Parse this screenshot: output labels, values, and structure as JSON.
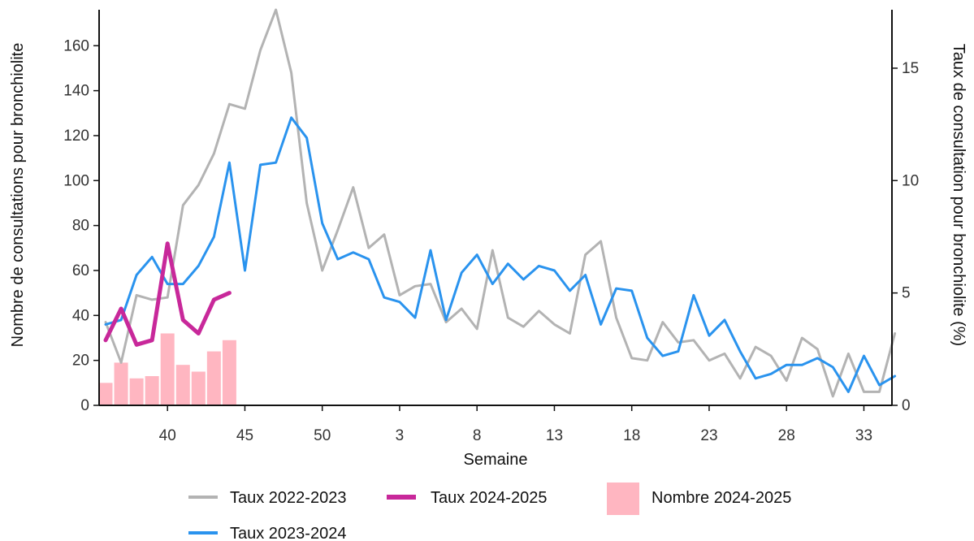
{
  "chart_data": {
    "type": "line",
    "xlabel": "Semaine",
    "ylabel_left": "Nombre de consultations pour bronchiolite",
    "ylabel_right": "Taux de consultation pour bronchiolite (%)",
    "weeks": [
      36,
      37,
      38,
      39,
      40,
      41,
      42,
      43,
      44,
      45,
      46,
      47,
      48,
      49,
      50,
      51,
      52,
      1,
      2,
      3,
      4,
      5,
      6,
      7,
      8,
      9,
      10,
      11,
      12,
      13,
      14,
      15,
      16,
      17,
      18,
      19,
      20,
      21,
      22,
      23,
      24,
      25,
      26,
      27,
      28,
      29,
      30,
      31,
      32,
      33,
      34,
      35
    ],
    "x_ticks": [
      "40",
      "45",
      "50",
      "3",
      "8",
      "13",
      "18",
      "23",
      "28",
      "33"
    ],
    "ylim_left": [
      0,
      176
    ],
    "yticks_left": [
      "0",
      "20",
      "40",
      "60",
      "80",
      "100",
      "120",
      "140",
      "160"
    ],
    "ylim_right": [
      0,
      17.6
    ],
    "yticks_right": [
      "0",
      "5",
      "10",
      "15"
    ],
    "series": [
      {
        "name": "Taux 2022-2023",
        "type": "line",
        "axis": "right",
        "color": "#b3b3b3",
        "values": [
          3.7,
          1.9,
          4.9,
          4.7,
          4.8,
          8.9,
          9.8,
          11.2,
          13.4,
          13.2,
          15.8,
          17.6,
          14.8,
          9.0,
          6.0,
          7.8,
          9.7,
          7.0,
          7.6,
          4.9,
          5.3,
          5.4,
          3.7,
          4.3,
          3.4,
          6.9,
          3.9,
          3.5,
          4.2,
          3.6,
          3.2,
          6.7,
          7.3,
          3.9,
          2.1,
          2.0,
          3.7,
          2.8,
          2.9,
          2.0,
          2.3,
          1.2,
          2.6,
          2.2,
          1.1,
          3.0,
          2.5,
          0.4,
          2.3,
          0.6,
          0.6,
          3.2
        ]
      },
      {
        "name": "Taux 2023-2024",
        "type": "line",
        "axis": "right",
        "color": "#2a93ee",
        "values": [
          3.6,
          3.8,
          5.8,
          6.6,
          5.4,
          5.4,
          6.2,
          7.5,
          10.8,
          6.0,
          10.7,
          10.8,
          12.8,
          11.9,
          8.1,
          6.5,
          6.8,
          6.5,
          4.8,
          4.6,
          3.9,
          6.9,
          3.8,
          5.9,
          6.7,
          5.4,
          6.3,
          5.6,
          6.2,
          6.0,
          5.1,
          5.8,
          3.6,
          5.2,
          5.1,
          3.0,
          2.2,
          2.4,
          4.9,
          3.1,
          3.8,
          2.4,
          1.2,
          1.4,
          1.8,
          1.8,
          2.1,
          1.7,
          0.6,
          2.2,
          0.9,
          1.3
        ]
      },
      {
        "name": "Taux 2024-2025",
        "type": "line",
        "axis": "right",
        "color": "#c8289a",
        "values": [
          2.9,
          4.3,
          2.7,
          2.9,
          7.2,
          3.8,
          3.2,
          4.7,
          5.0
        ]
      },
      {
        "name": "Nombre 2024-2025",
        "type": "bar",
        "axis": "left",
        "color": "#ffb6c1",
        "values": [
          10,
          19,
          12,
          13,
          32,
          18,
          15,
          24,
          29
        ]
      }
    ],
    "legend_position": "bottom"
  }
}
